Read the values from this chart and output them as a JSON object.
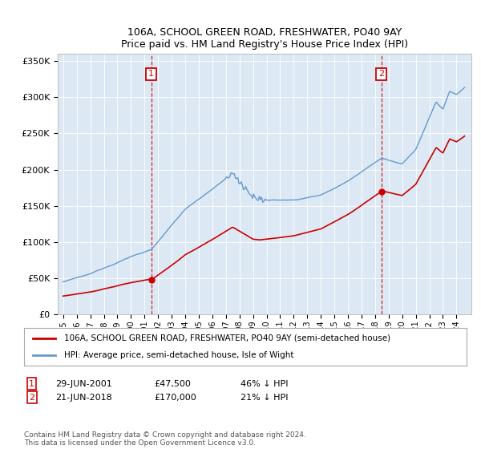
{
  "title1": "106A, SCHOOL GREEN ROAD, FRESHWATER, PO40 9AY",
  "title2": "Price paid vs. HM Land Registry's House Price Index (HPI)",
  "legend_label1": "106A, SCHOOL GREEN ROAD, FRESHWATER, PO40 9AY (semi-detached house)",
  "legend_label2": "HPI: Average price, semi-detached house, Isle of Wight",
  "annotation1_date": "29-JUN-2001",
  "annotation1_price": "£47,500",
  "annotation1_hpi": "46% ↓ HPI",
  "annotation2_date": "21-JUN-2018",
  "annotation2_price": "£170,000",
  "annotation2_hpi": "21% ↓ HPI",
  "footer": "Contains HM Land Registry data © Crown copyright and database right 2024.\nThis data is licensed under the Open Government Licence v3.0.",
  "plot_bg_color": "#dce9f5",
  "line1_color": "#cc0000",
  "line2_color": "#6699cc",
  "vline_color": "#cc0000",
  "annotation_box_color": "#cc0000",
  "ylim": [
    0,
    360000
  ],
  "yticks": [
    0,
    50000,
    100000,
    150000,
    200000,
    250000,
    300000,
    350000
  ],
  "ytick_labels": [
    "£0",
    "£50K",
    "£100K",
    "£150K",
    "£200K",
    "£250K",
    "£300K",
    "£350K"
  ],
  "sale1_year": 2001.49,
  "sale1_price": 47500,
  "sale2_year": 2018.47,
  "sale2_price": 170000
}
